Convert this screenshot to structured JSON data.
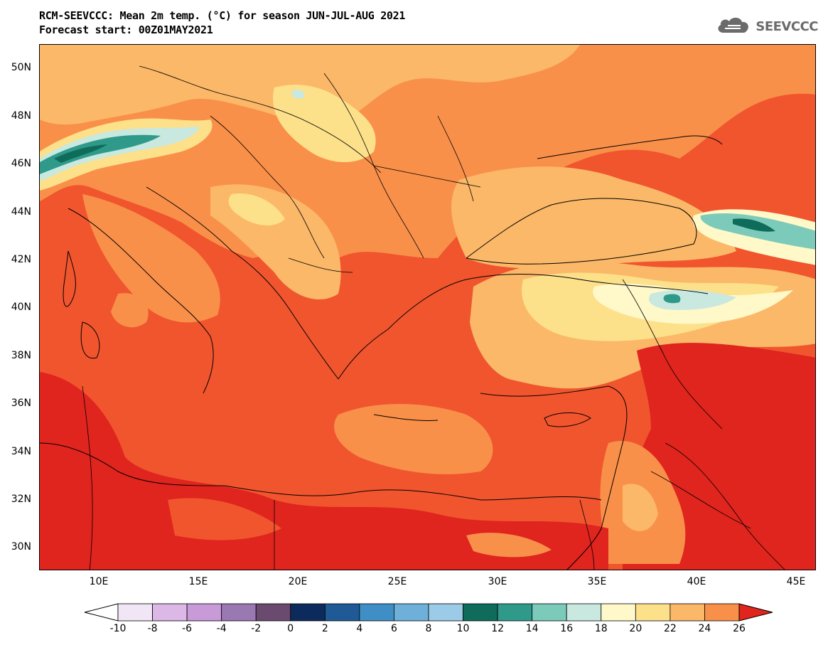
{
  "header": {
    "title_line1": "RCM-SEEVCCC: Mean 2m temp. (°C) for season JUN-JUL-AUG 2021",
    "title_line2": "Forecast start: 00Z01MAY2021",
    "logo_text": "SEEVCCC",
    "logo_icon": "cloud-icon"
  },
  "map": {
    "lat_labels": [
      "50N",
      "48N",
      "46N",
      "44N",
      "42N",
      "40N",
      "38N",
      "36N",
      "34N",
      "32N",
      "30N"
    ],
    "lon_labels": [
      "10E",
      "15E",
      "20E",
      "25E",
      "30E",
      "35E",
      "40E",
      "45E"
    ],
    "region": "Mediterranean / Balkans / Anatolia"
  },
  "colorbar": {
    "labels": [
      "-10",
      "-8",
      "-6",
      "-4",
      "-2",
      "0",
      "2",
      "4",
      "6",
      "8",
      "10",
      "12",
      "14",
      "16",
      "18",
      "20",
      "22",
      "24",
      "26"
    ],
    "colors": [
      "#f1e6f5",
      "#dcb8e6",
      "#c89ad8",
      "#9a78b2",
      "#6a4a6e",
      "#0d2a5c",
      "#1f5a96",
      "#3f8fc6",
      "#6eb0da",
      "#9bcbe6",
      "#0f6b5a",
      "#2f9a8a",
      "#7ccaba",
      "#c8e8e0",
      "#fff8c8",
      "#fde08a",
      "#fbb868",
      "#f9904a",
      "#f0552e",
      "#e0241e"
    ],
    "under_color": "#ffffff",
    "over_color": "#e0241e"
  },
  "colors": {
    "deep_red": "#e0241e",
    "red_orange": "#f0552e",
    "orange": "#f9904a",
    "light_orange": "#fbb868",
    "yellow": "#fde08a",
    "pale_yellow": "#fff8c8",
    "pale_cyan": "#c8e8e0",
    "teal": "#2f9a8a",
    "dark_teal": "#0f6b5a"
  }
}
